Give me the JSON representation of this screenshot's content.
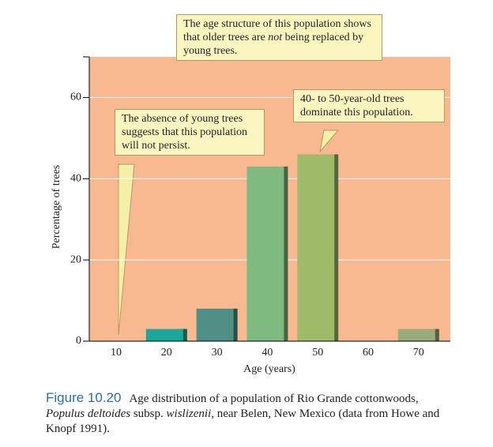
{
  "chart_data": {
    "type": "bar",
    "y_label": "Percentage of trees",
    "x_label": "Age (years)",
    "categories": [
      "10",
      "20",
      "30",
      "40",
      "50",
      "60",
      "70"
    ],
    "values": [
      0,
      3,
      8,
      43,
      46,
      0,
      3
    ],
    "colors": [
      "#1aa89a",
      "#1aa89a",
      "#4f8f86",
      "#7fbb80",
      "#9fbb6a",
      "#9aab7a",
      "#9aab7a"
    ],
    "ylim": [
      0,
      70
    ],
    "yticks": [
      0,
      20,
      40,
      60
    ],
    "grid": true,
    "annotations": [
      {
        "text": [
          "The age structure of this population shows that older trees are ",
          "not",
          " being replaced by young trees."
        ]
      },
      {
        "text": [
          "The absence of young trees suggests that this population will not persist."
        ]
      },
      {
        "text": [
          "40- to 50-year-old trees dominate this population."
        ]
      }
    ]
  },
  "caption": {
    "label": "Figure 10.20",
    "text": [
      "Age distribution of a population of Rio Grande cottonwoods, ",
      "Populus deltoides",
      " subsp. ",
      "wislizenii",
      ", near Belen, New Mexico (data from Howe and Knopf 1991)."
    ]
  }
}
